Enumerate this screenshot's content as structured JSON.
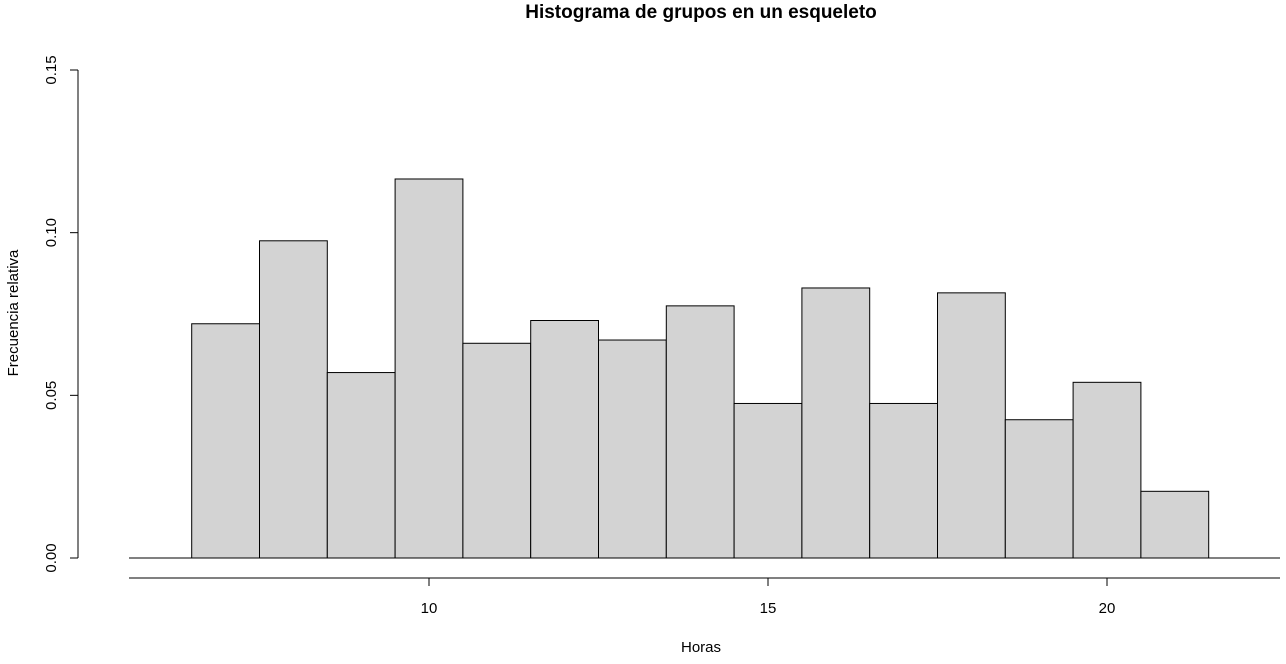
{
  "chart_data": {
    "type": "bar",
    "title": "Histograma de grupos en un esqueleto",
    "xlabel": "Horas",
    "ylabel": "Frecuencia relativa",
    "bins": [
      {
        "start": 6.5,
        "end": 7.5,
        "value": 0.072
      },
      {
        "start": 7.5,
        "end": 8.5,
        "value": 0.0975
      },
      {
        "start": 8.5,
        "end": 9.5,
        "value": 0.057
      },
      {
        "start": 9.5,
        "end": 10.5,
        "value": 0.1165
      },
      {
        "start": 10.5,
        "end": 11.5,
        "value": 0.066
      },
      {
        "start": 11.5,
        "end": 12.5,
        "value": 0.073
      },
      {
        "start": 12.5,
        "end": 13.5,
        "value": 0.067
      },
      {
        "start": 13.5,
        "end": 14.5,
        "value": 0.0775
      },
      {
        "start": 14.5,
        "end": 15.5,
        "value": 0.0475
      },
      {
        "start": 15.5,
        "end": 16.5,
        "value": 0.083
      },
      {
        "start": 16.5,
        "end": 17.5,
        "value": 0.0475
      },
      {
        "start": 17.5,
        "end": 18.5,
        "value": 0.0815
      },
      {
        "start": 18.5,
        "end": 19.5,
        "value": 0.0425
      },
      {
        "start": 19.5,
        "end": 20.5,
        "value": 0.054
      },
      {
        "start": 20.5,
        "end": 21.5,
        "value": 0.0205
      }
    ],
    "xlim": [
      4.5,
      25.0
    ],
    "ylim": [
      0,
      0.15
    ],
    "x_ticks": [
      10,
      15,
      20
    ],
    "x_tick_labels": [
      "10",
      "15",
      "20"
    ],
    "x_axis_range": [
      5,
      25
    ],
    "y_ticks": [
      0,
      0.05,
      0.1,
      0.15
    ],
    "y_tick_labels": [
      "0.00",
      "0.05",
      "0.10",
      "0.15"
    ],
    "grid": false,
    "colors": {
      "bar_fill": "#d3d3d3",
      "bar_stroke": "#000000"
    }
  }
}
